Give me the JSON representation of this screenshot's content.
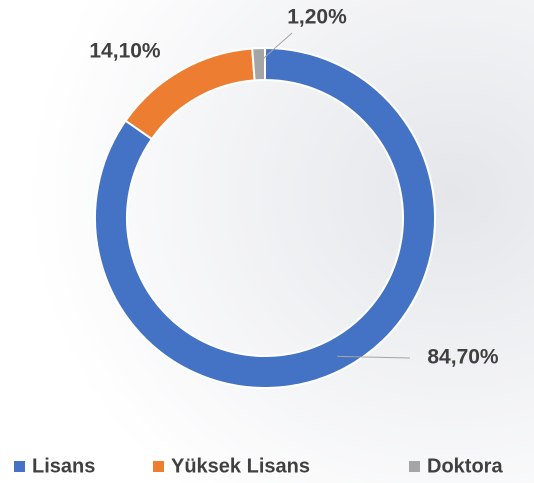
{
  "chart_data": {
    "type": "donut",
    "categories": [
      "Lisans",
      "Yüksek Lisans",
      "Doktora"
    ],
    "values": [
      84.7,
      14.1,
      1.2
    ],
    "value_labels": [
      "84,70%",
      "14,10%",
      "1,20%"
    ],
    "colors": [
      "#4472c4",
      "#ed7d31",
      "#a5a5a5"
    ],
    "legend": "bottom"
  }
}
